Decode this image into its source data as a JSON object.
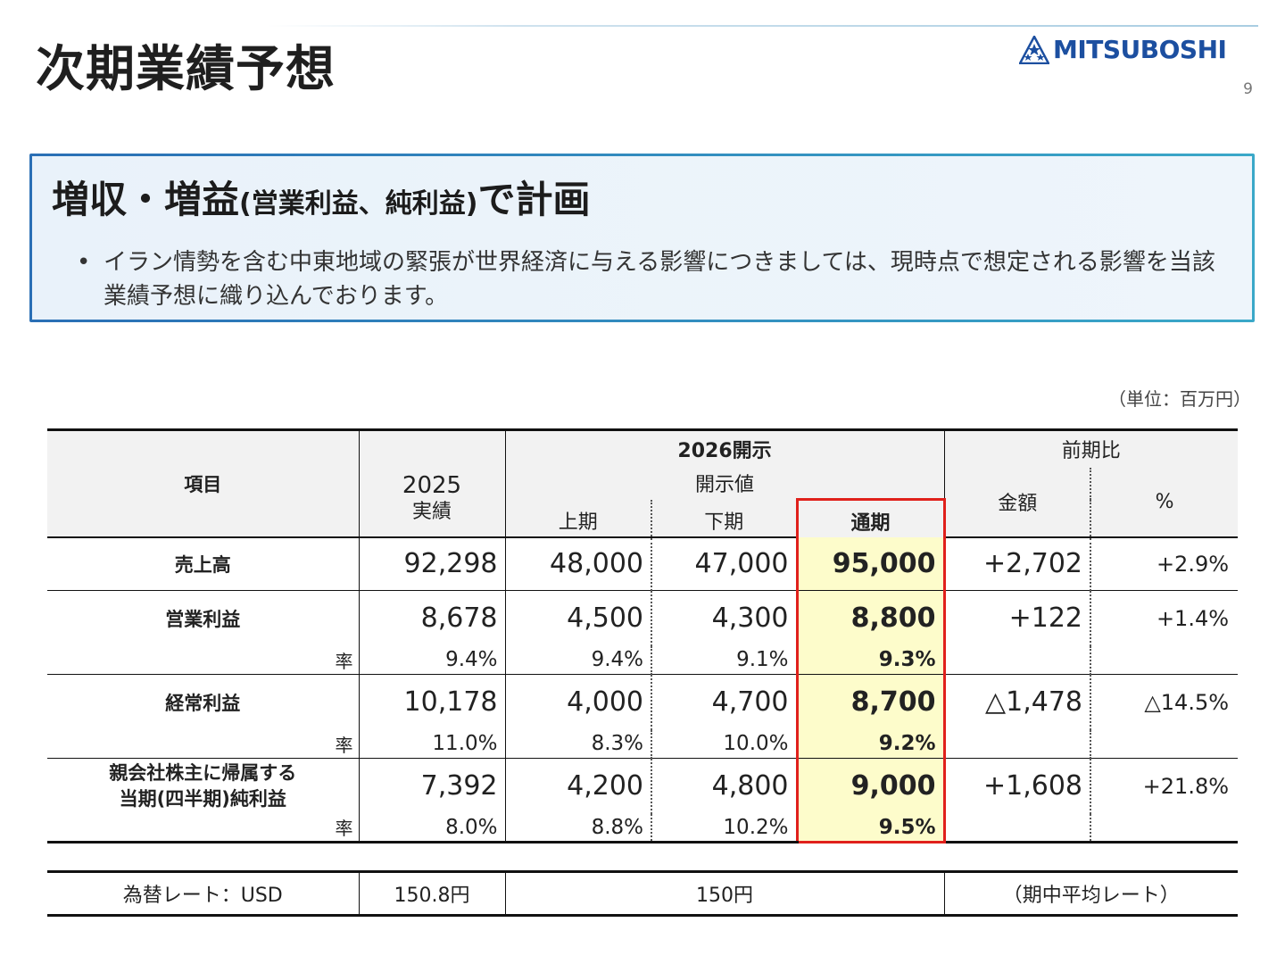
{
  "header": {
    "title": "次期業績予想",
    "brand": "MITSUBOSHI",
    "page_number": "9"
  },
  "summary": {
    "headline_main": "増収・増益",
    "headline_paren": "(営業利益、純利益)",
    "headline_tail": "で計画",
    "bullet": "イラン情勢を含む中東地域の緊張が世界経済に与える影響につきましては、現時点で想定される影響を当該業績予想に織り込んでおります。"
  },
  "unit_note": "（単位：百万円）",
  "table": {
    "headers": {
      "item": "項目",
      "actual_year": "2025",
      "actual_label": "実績",
      "disclosure": "2026開示",
      "disclosure_value": "開示値",
      "first_half": "上期",
      "second_half": "下期",
      "full_year": "通期",
      "yoy": "前期比",
      "amount": "金額",
      "percent": "%"
    },
    "rate_label": "率",
    "rows": [
      {
        "label": "売上高",
        "actual": "92,298",
        "h1": "48,000",
        "h2": "47,000",
        "full": "95,000",
        "diff": "+2,702",
        "pct": "+2.9%"
      },
      {
        "label": "営業利益",
        "actual": "8,678",
        "h1": "4,500",
        "h2": "4,300",
        "full": "8,800",
        "diff": "+122",
        "pct": "+1.4%",
        "rate": {
          "actual": "9.4%",
          "h1": "9.4%",
          "h2": "9.1%",
          "full": "9.3%"
        }
      },
      {
        "label": "経常利益",
        "actual": "10,178",
        "h1": "4,000",
        "h2": "4,700",
        "full": "8,700",
        "diff": "△1,478",
        "pct": "△14.5%",
        "rate": {
          "actual": "11.0%",
          "h1": "8.3%",
          "h2": "10.0%",
          "full": "9.2%"
        }
      },
      {
        "label_line1": "親会社株主に帰属する",
        "label_line2": "当期(四半期)純利益",
        "actual": "7,392",
        "h1": "4,200",
        "h2": "4,800",
        "full": "9,000",
        "diff": "+1,608",
        "pct": "+21.8%",
        "rate": {
          "actual": "8.0%",
          "h1": "8.8%",
          "h2": "10.2%",
          "full": "9.5%"
        }
      }
    ]
  },
  "fx": {
    "label": "為替レート：USD",
    "actual": "150.8円",
    "forecast": "150円",
    "note": "（期中平均レート）"
  },
  "colors": {
    "brand_blue": "#1c4fa0",
    "highlight_fill": "#fdfccb",
    "highlight_border": "#e0201b",
    "box_fill": "#e9f2fa",
    "box_border": "#2a6fb5"
  }
}
